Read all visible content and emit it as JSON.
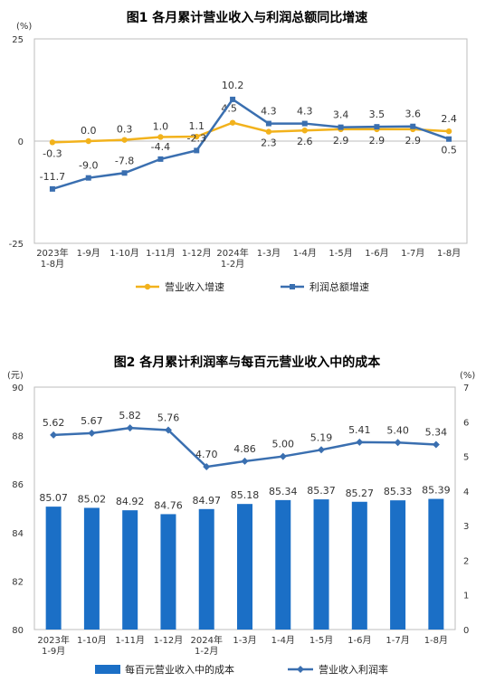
{
  "chart_data": [
    {
      "type": "line",
      "title": "图1  各月累计营业收入与利润总额同比增速",
      "yunit": "(%)",
      "ylim": [
        -25,
        25
      ],
      "yticks": [
        "25",
        "0",
        "-25"
      ],
      "categories": [
        "2023年|1-8月",
        "1-9月",
        "1-10月",
        "1-11月",
        "1-12月",
        "2024年|1-2月",
        "1-3月",
        "1-4月",
        "1-5月",
        "1-6月",
        "1-7月",
        "1-8月"
      ],
      "series": [
        {
          "name": "营业收入增速",
          "color": "#f2b21c",
          "marker": "circle",
          "values": [
            -0.3,
            0.0,
            0.3,
            1.0,
            1.1,
            4.5,
            2.3,
            2.6,
            2.9,
            2.9,
            2.9,
            2.4
          ],
          "labels": [
            "-0.3",
            "0.0",
            "0.3",
            "1.0",
            "1.1",
            "4.5",
            "2.3",
            "2.6",
            "2.9",
            "2.9",
            "2.9",
            "2.4"
          ]
        },
        {
          "name": "利润总额增速",
          "color": "#3a6fb0",
          "marker": "square",
          "values": [
            -11.7,
            -9.0,
            -7.8,
            -4.4,
            -2.3,
            10.2,
            4.3,
            4.3,
            3.4,
            3.5,
            3.6,
            0.5
          ],
          "labels": [
            "-11.7",
            "-9.0",
            "-7.8",
            "-4.4",
            "-2.3",
            "10.2",
            "4.3",
            "4.3",
            "3.4",
            "3.5",
            "3.6",
            "0.5"
          ]
        }
      ],
      "grid": false,
      "legend": "bottom"
    },
    {
      "type": "bar",
      "title": "图2  各月累计利润率与每百元营业收入中的成本",
      "yunit_left": "(元)",
      "yunit_right": "(%)",
      "ylim_left": [
        80,
        90
      ],
      "ylim_right": [
        0,
        7
      ],
      "yticks_left": [
        "90",
        "88",
        "86",
        "84",
        "82",
        "80"
      ],
      "yticks_right": [
        "7",
        "6",
        "5",
        "4",
        "3",
        "2",
        "1",
        "0"
      ],
      "categories": [
        "2023年|1-9月",
        "1-10月",
        "1-11月",
        "1-12月",
        "2024年|1-2月",
        "1-3月",
        "1-4月",
        "1-5月",
        "1-6月",
        "1-7月",
        "1-8月"
      ],
      "series": [
        {
          "name": "每百元营业收入中的成本",
          "color": "#1b6fc6",
          "axis": "left",
          "kind": "bar",
          "values": [
            85.07,
            85.02,
            84.92,
            84.76,
            84.97,
            85.18,
            85.34,
            85.37,
            85.27,
            85.33,
            85.39
          ],
          "labels": [
            "85.07",
            "85.02",
            "84.92",
            "84.76",
            "84.97",
            "85.18",
            "85.34",
            "85.37",
            "85.27",
            "85.33",
            "85.39"
          ]
        },
        {
          "name": "营业收入利润率",
          "color": "#3a6fb0",
          "axis": "right",
          "kind": "line",
          "marker": "diamond",
          "values": [
            5.62,
            5.67,
            5.82,
            5.76,
            4.7,
            4.86,
            5.0,
            5.19,
            5.41,
            5.4,
            5.34
          ],
          "labels": [
            "5.62",
            "5.67",
            "5.82",
            "5.76",
            "4.70",
            "4.86",
            "5.00",
            "5.19",
            "5.41",
            "5.40",
            "5.34"
          ]
        }
      ],
      "grid": false,
      "legend": "bottom"
    }
  ]
}
